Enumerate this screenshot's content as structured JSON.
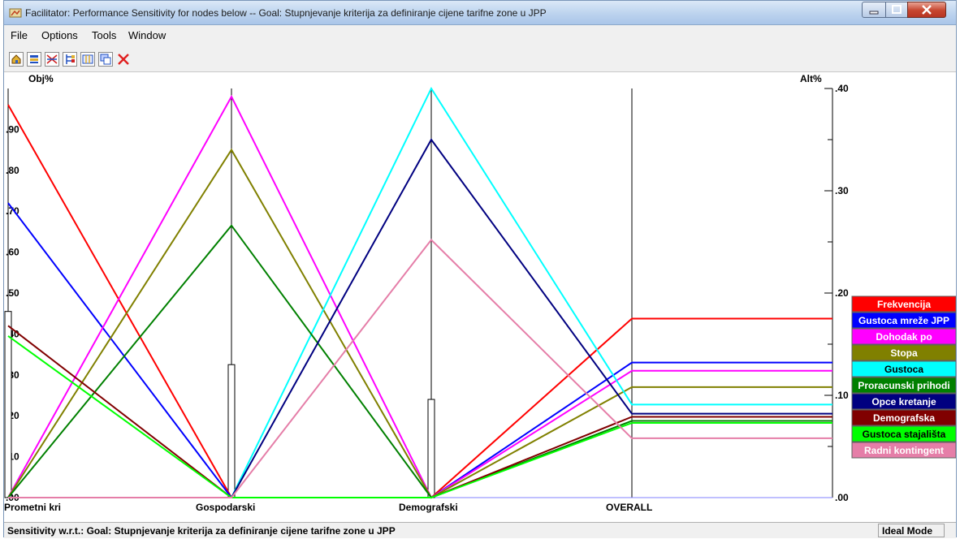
{
  "window": {
    "title": "Facilitator: Performance Sensitivity for nodes below -- Goal: Stupnjevanje kriterija za definiranje cijene tarifne zone u JPP"
  },
  "menu": [
    "File",
    "Options",
    "Tools",
    "Window"
  ],
  "toolbar": {
    "icons": [
      "home-icon",
      "list-icon",
      "cross-lines-icon",
      "tree-icon",
      "columns-icon",
      "windows-icon",
      "close-icon"
    ]
  },
  "statusbar": {
    "text": "Sensitivity w.r.t.: Goal: Stupnjevanje kriterija za definiranje cijene tarifne zone u JPP",
    "mode": "Ideal Mode"
  },
  "chart_data": {
    "type": "line",
    "left_axis_label": "Obj%",
    "right_axis_label": "Alt%",
    "left_ticks": [
      ".00",
      ".10",
      ".20",
      ".30",
      ".40",
      ".50",
      ".60",
      ".70",
      ".80",
      ".90"
    ],
    "right_ticks": [
      ".00",
      ".10",
      ".20",
      ".30",
      ".40"
    ],
    "ylim_left": [
      0,
      1.0
    ],
    "ylim_right": [
      0,
      0.4
    ],
    "criteria": [
      "Prometni kri",
      "Gospodarski",
      "Demografski"
    ],
    "overall_label": "OVERALL",
    "criteria_weights": [
      0.455,
      0.325,
      0.24
    ],
    "series": [
      {
        "name": "Frekvencija",
        "color": "#ff0000",
        "values": [
          0.96,
          0.0,
          0.0
        ],
        "overall": 0.175
      },
      {
        "name": "Gustoca mreže JPP",
        "color": "#0000ff",
        "values": [
          0.72,
          0.0,
          0.0
        ],
        "overall": 0.132
      },
      {
        "name": "Dohodak po",
        "color": "#ff00ff",
        "values": [
          0.0,
          0.98,
          0.0
        ],
        "overall": 0.124
      },
      {
        "name": "Stopa",
        "color": "#808000",
        "values": [
          0.0,
          0.85,
          0.0
        ],
        "overall": 0.108
      },
      {
        "name": "Gustoca",
        "color": "#00ffff",
        "values": [
          0.0,
          0.0,
          1.0
        ],
        "overall": 0.091
      },
      {
        "name": "Proracunski prihodi",
        "color": "#008000",
        "values": [
          0.0,
          0.665,
          0.0
        ],
        "overall": 0.075
      },
      {
        "name": "Opce kretanje",
        "color": "#000080",
        "values": [
          0.0,
          0.0,
          0.875
        ],
        "overall": 0.082
      },
      {
        "name": "Demografska",
        "color": "#800000",
        "values": [
          0.42,
          0.0,
          0.0
        ],
        "overall": 0.079
      },
      {
        "name": "Gustoca stajališta",
        "color": "#00ff00",
        "values": [
          0.395,
          0.0,
          0.0
        ],
        "overall": 0.073
      },
      {
        "name": "Radni kontingent",
        "color": "#e57ea8",
        "values": [
          0.0,
          0.0,
          0.63
        ],
        "overall": 0.058
      }
    ]
  }
}
